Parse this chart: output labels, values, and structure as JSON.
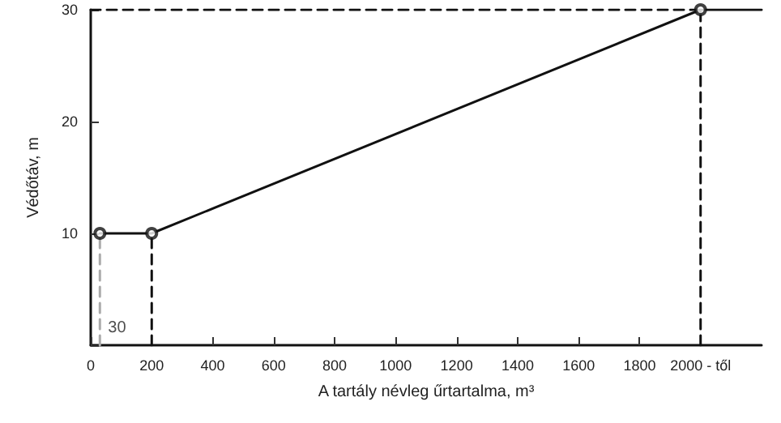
{
  "chart_data": {
    "type": "line",
    "xlabel": "A tartály névleg űrtartalma, m³",
    "ylabel": "Védőtáv, m",
    "xlim": [
      0,
      2200
    ],
    "ylim": [
      0,
      30
    ],
    "xticks": [
      0,
      200,
      400,
      600,
      800,
      1000,
      1200,
      1400,
      1600,
      1800,
      {
        "value": 2000,
        "label": "2000 - től"
      }
    ],
    "yticks": [
      {
        "value": 0,
        "label": null
      },
      10,
      20,
      30
    ],
    "grid": false,
    "series": [
      {
        "color": "#111111",
        "x": [
          30,
          200,
          2000,
          2200
        ],
        "values": [
          10,
          10,
          30,
          30
        ],
        "line_style": "solid",
        "marker": "none"
      },
      {
        "type": "scatter",
        "color": "#111111",
        "x": [
          30,
          200,
          2000
        ],
        "values": [
          10,
          10,
          30
        ],
        "marker": "circle"
      },
      {
        "color": "#aaaaaa",
        "x": [
          30,
          30
        ],
        "values": [
          0,
          10
        ],
        "line_style": "dashed",
        "marker": "none"
      },
      {
        "color": "#111111",
        "x": [
          200,
          200
        ],
        "values": [
          0,
          10
        ],
        "line_style": "dashed",
        "marker": "none"
      },
      {
        "color": "#111111",
        "x": [
          2000,
          2000
        ],
        "values": [
          0,
          30
        ],
        "line_style": "dashed",
        "marker": "none"
      },
      {
        "color": "#111111",
        "x": [
          0,
          2000
        ],
        "values": [
          30,
          30
        ],
        "line_style": "dashed",
        "marker": "none"
      }
    ],
    "annotations": [
      {
        "text": "30",
        "x": 30,
        "y": 1.5
      }
    ]
  }
}
